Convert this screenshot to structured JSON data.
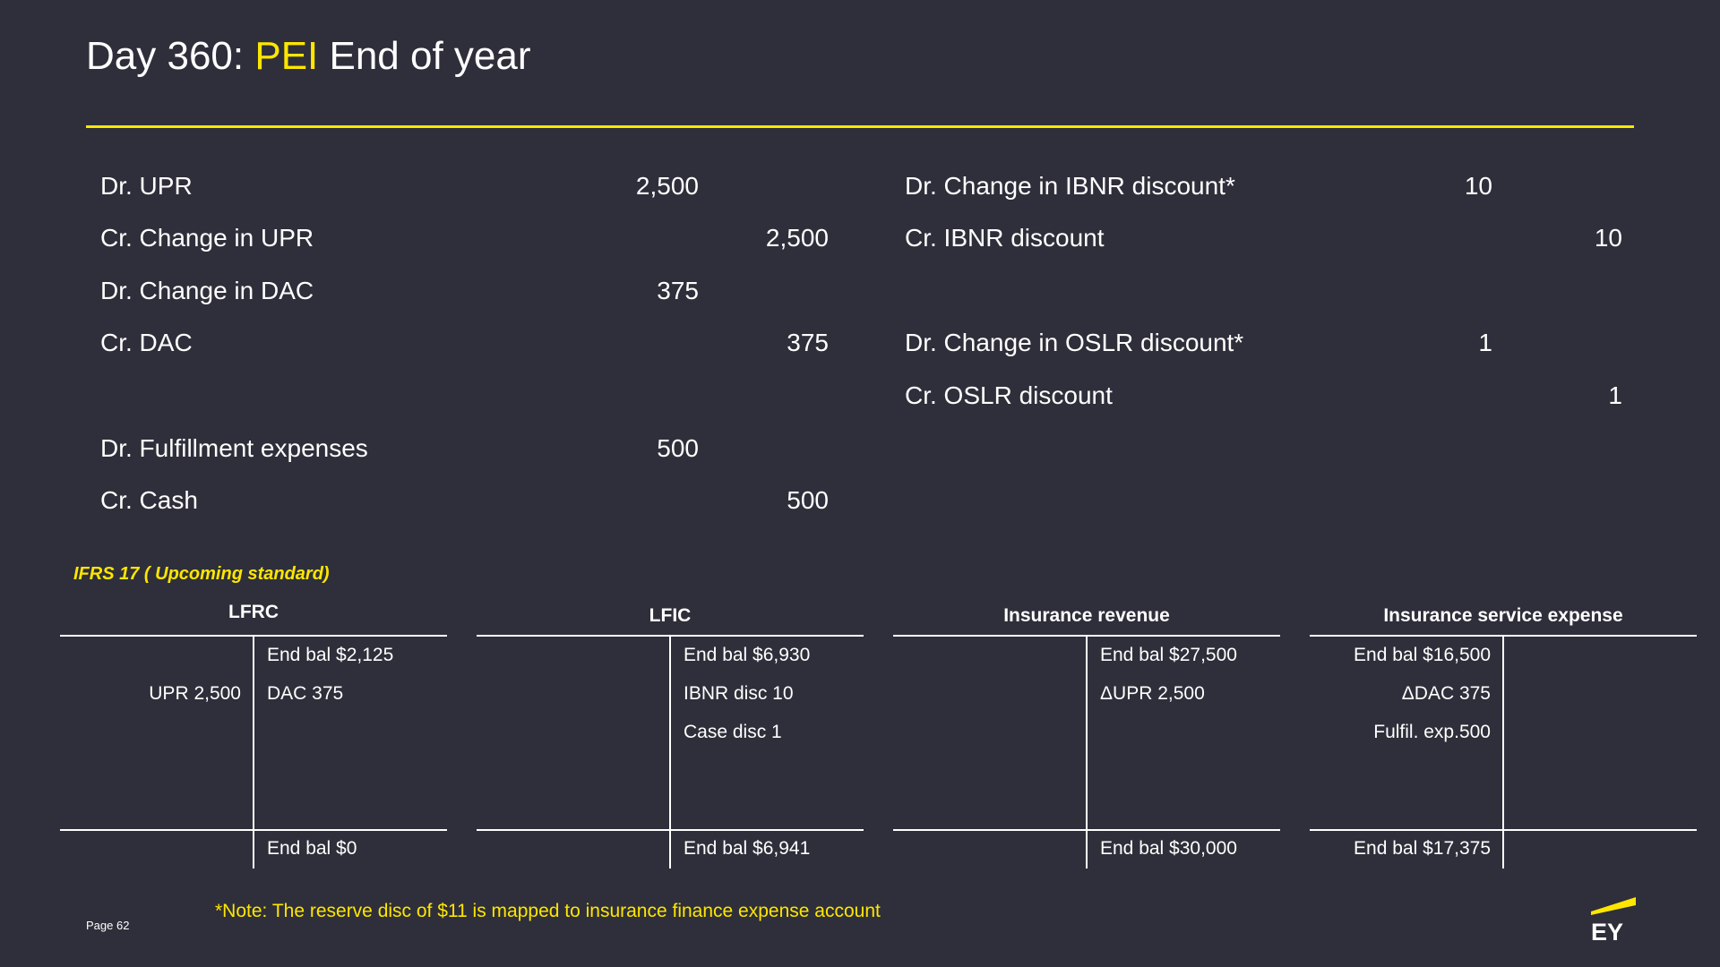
{
  "title": {
    "prefix": "Day 360: ",
    "highlight": "PEI",
    "suffix": " End of year"
  },
  "journal_left": [
    {
      "label": "Dr. UPR",
      "debit": "2,500",
      "credit": ""
    },
    {
      "label": "Cr. Change in UPR",
      "debit": "",
      "credit": "2,500"
    },
    {
      "label": "Dr. Change in DAC",
      "debit": "375",
      "credit": ""
    },
    {
      "label": "Cr. DAC",
      "debit": "",
      "credit": "375"
    },
    {
      "label": "Dr. Fulfillment expenses",
      "debit": "500",
      "credit": ""
    },
    {
      "label": "Cr. Cash",
      "debit": "",
      "credit": "500"
    }
  ],
  "journal_right": [
    {
      "label": "Dr. Change in IBNR discount*",
      "debit": "10",
      "credit": ""
    },
    {
      "label": "Cr. IBNR discount",
      "debit": "",
      "credit": "10"
    },
    {
      "label": "Dr. Change in OSLR discount*",
      "debit": "1",
      "credit": ""
    },
    {
      "label": "Cr. OSLR discount",
      "debit": "",
      "credit": "1"
    }
  ],
  "ifrs_label": "IFRS 17 ( Upcoming standard)",
  "t_accounts": [
    {
      "title": "LFRC",
      "rows": [
        {
          "left": "",
          "right": "End bal $2,125"
        },
        {
          "left": "UPR 2,500",
          "right": "DAC 375"
        },
        {
          "left": "",
          "right": ""
        },
        {
          "left": "",
          "right": ""
        },
        {
          "left": "",
          "right": ""
        }
      ],
      "total": {
        "left": "",
        "right": "End bal $0"
      }
    },
    {
      "title": "LFIC",
      "rows": [
        {
          "left": "",
          "right": "End bal $6,930"
        },
        {
          "left": "",
          "right": "IBNR disc 10"
        },
        {
          "left": "",
          "right": "Case disc 1"
        },
        {
          "left": "",
          "right": ""
        },
        {
          "left": "",
          "right": ""
        }
      ],
      "total": {
        "left": "",
        "right": "End bal $6,941"
      }
    },
    {
      "title": "Insurance revenue",
      "rows": [
        {
          "left": "",
          "right": "End bal $27,500"
        },
        {
          "left": "",
          "right": "ΔUPR 2,500"
        },
        {
          "left": "",
          "right": ""
        },
        {
          "left": "",
          "right": ""
        },
        {
          "left": "",
          "right": ""
        }
      ],
      "total": {
        "left": "",
        "right": "End bal $30,000"
      }
    },
    {
      "title": "Insurance service expense",
      "rows": [
        {
          "left": "End bal $16,500",
          "right": ""
        },
        {
          "left": "ΔDAC 375",
          "right": ""
        },
        {
          "left": "Fulfil. exp.500",
          "right": ""
        },
        {
          "left": "",
          "right": ""
        },
        {
          "left": "",
          "right": ""
        }
      ],
      "total": {
        "left": "End bal $17,375",
        "right": ""
      }
    }
  ],
  "note": "*Note: The reserve disc of $11 is mapped to insurance finance expense account",
  "page": "Page 62",
  "logo": {
    "text": "EY",
    "icon": "ey-logo-icon",
    "accent": "#ffe600"
  },
  "colors": {
    "background": "#2e2f3a",
    "accent": "#ffe600",
    "text": "#ffffff"
  }
}
